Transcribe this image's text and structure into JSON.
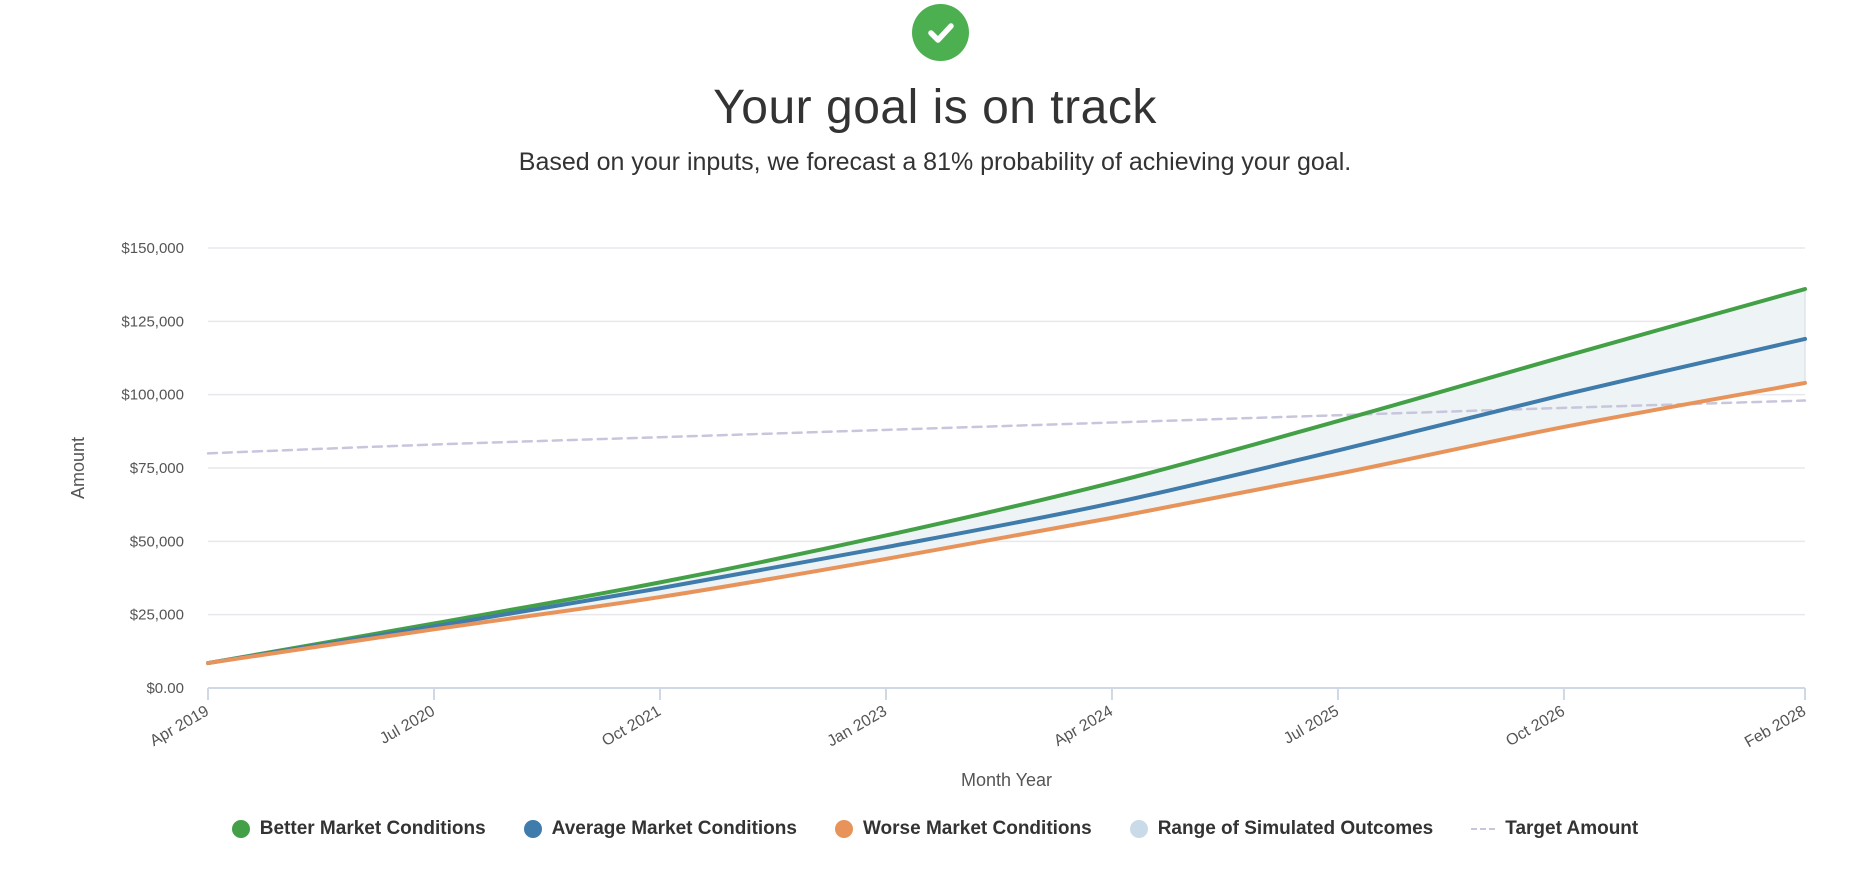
{
  "status": {
    "icon": "check-circle-icon",
    "color": "#4caf50",
    "headline": "Your goal is on track",
    "subtext": "Based on your inputs, we forecast a 81% probability of achieving your goal."
  },
  "chart_data": {
    "type": "line",
    "title": "",
    "xlabel": "Month Year",
    "ylabel": "Amount",
    "ylim": [
      0,
      150000
    ],
    "yticks": [
      0,
      25000,
      50000,
      75000,
      100000,
      125000,
      150000
    ],
    "ytick_labels": [
      "$0.00",
      "$25,000",
      "$50,000",
      "$75,000",
      "$100,000",
      "$125,000",
      "$150,000"
    ],
    "x_range": [
      "2019-04",
      "2028-02"
    ],
    "x_ticks": [
      "Apr 2019",
      "Jul 2020",
      "Oct 2021",
      "Jan 2023",
      "Apr 2024",
      "Jul 2025",
      "Oct 2026",
      "Feb 2028"
    ],
    "grid": true,
    "legend_position": "bottom",
    "x": [
      "2019-04",
      "2020-07",
      "2021-10",
      "2023-01",
      "2024-04",
      "2025-07",
      "2026-10",
      "2028-02"
    ],
    "series": [
      {
        "name": "Better Market Conditions",
        "color": "#43a047",
        "values": [
          8500,
          22000,
          36000,
          52000,
          70000,
          91000,
          113000,
          136000
        ]
      },
      {
        "name": "Average Market Conditions",
        "color": "#3f7bab",
        "values": [
          8500,
          21000,
          34000,
          48000,
          63000,
          81000,
          100000,
          119000
        ]
      },
      {
        "name": "Worse Market Conditions",
        "color": "#e8935a",
        "values": [
          8500,
          20000,
          31000,
          44000,
          58000,
          73000,
          89000,
          104000
        ]
      },
      {
        "name": "Target Amount",
        "color": "#c7c6dd",
        "dashed": true,
        "values": [
          80000,
          83000,
          85500,
          88000,
          90500,
          93000,
          95500,
          98000
        ]
      }
    ],
    "range": {
      "name": "Range of Simulated Outcomes",
      "color": "#c9dbe9",
      "upper": "Better Market Conditions",
      "lower": "Worse Market Conditions"
    }
  }
}
